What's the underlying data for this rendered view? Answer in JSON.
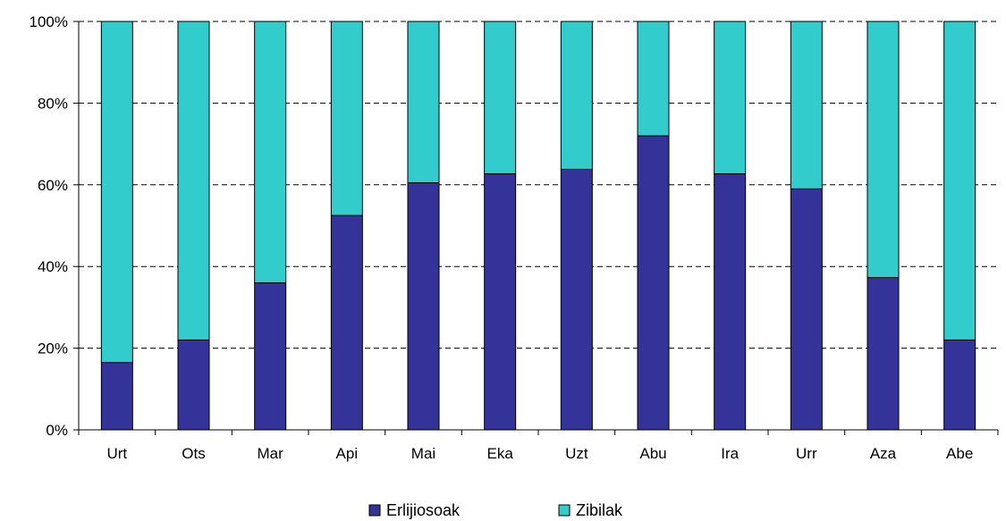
{
  "chart_data": {
    "type": "bar",
    "stacked": true,
    "normalized": true,
    "categories": [
      "Urt",
      "Ots",
      "Mar",
      "Api",
      "Mai",
      "Eka",
      "Uzt",
      "Abu",
      "Ira",
      "Urr",
      "Aza",
      "Abe"
    ],
    "series": [
      {
        "name": "Erlijiosoak",
        "color": "#333399",
        "values": [
          16.5,
          22,
          36,
          52.5,
          60.5,
          62.7,
          63.8,
          72,
          62.7,
          59,
          37.3,
          22
        ]
      },
      {
        "name": "Zibilak",
        "color": "#33CCCC",
        "values": [
          83.5,
          78,
          64,
          47.5,
          39.5,
          37.3,
          36.2,
          28,
          37.3,
          41,
          62.7,
          78
        ]
      }
    ],
    "yticks": [
      "0%",
      "20%",
      "40%",
      "60%",
      "80%",
      "100%"
    ],
    "ylim": [
      0,
      100
    ],
    "grid": true,
    "legend": "bottom"
  }
}
